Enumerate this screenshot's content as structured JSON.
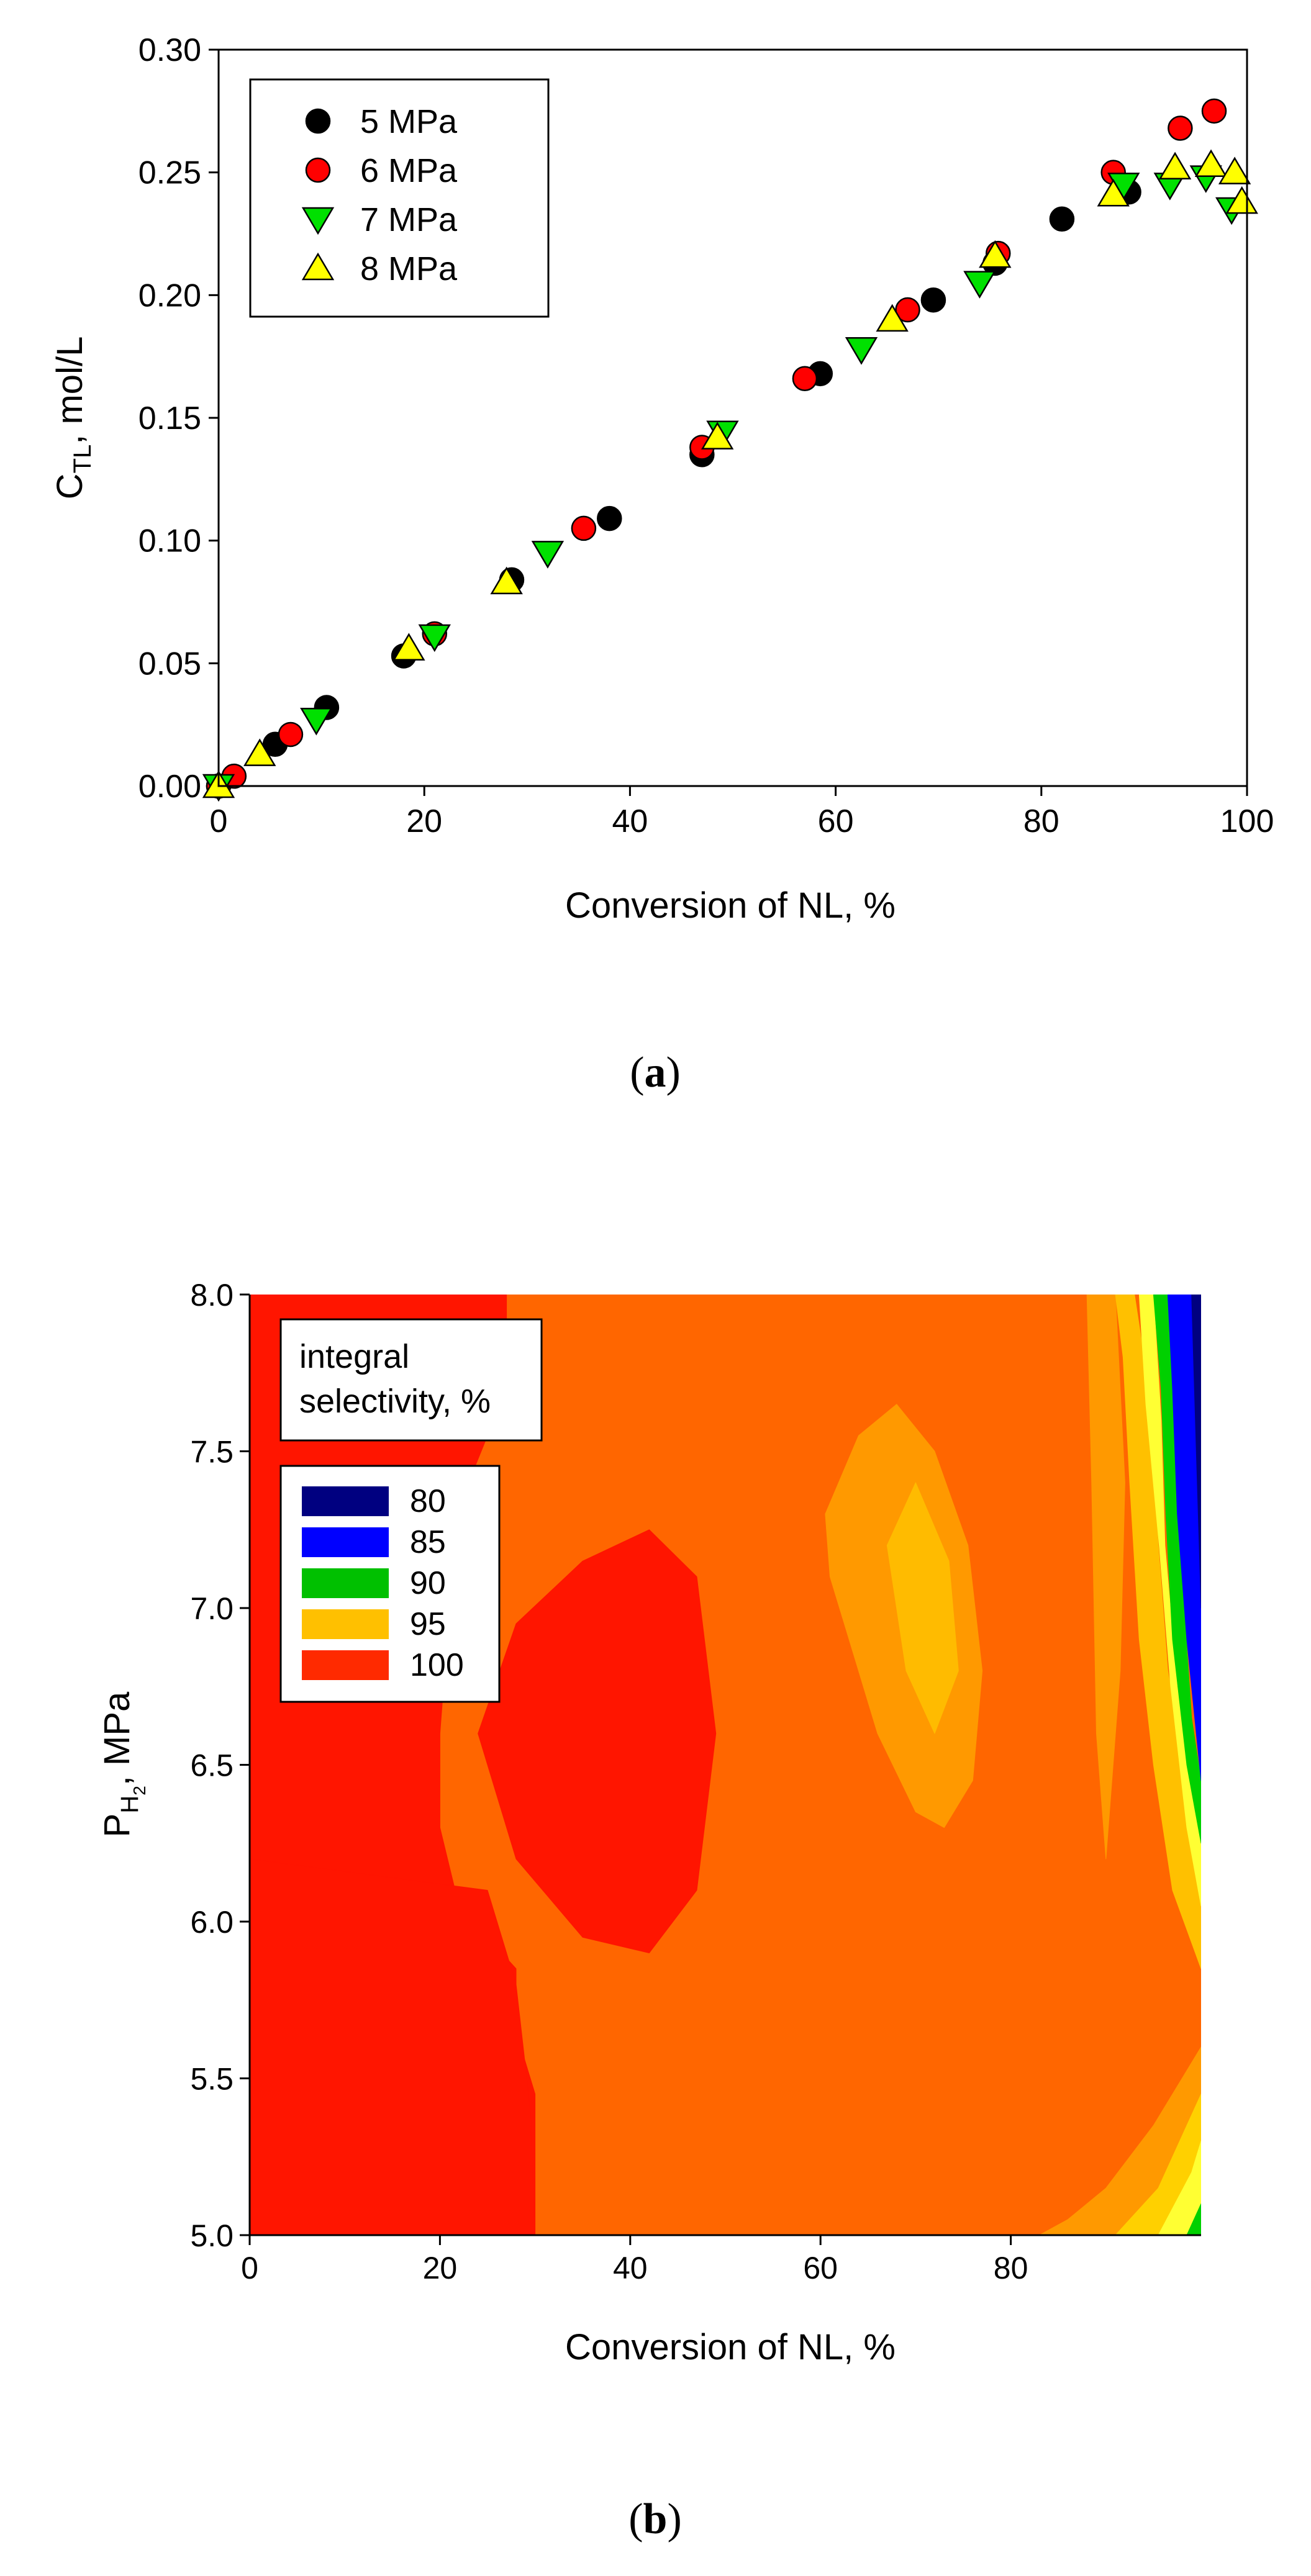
{
  "chart_data": [
    {
      "type": "scatter",
      "panel_label": "a",
      "xlabel": "Conversion of NL, %",
      "ylabel_main": "C",
      "ylabel_sub": "TL",
      "ylabel_rest": ", mol/L",
      "xlim": [
        0,
        100
      ],
      "ylim": [
        0,
        0.3
      ],
      "xticks": [
        "0",
        "20",
        "40",
        "60",
        "80",
        "100"
      ],
      "yticks": [
        "0.00",
        "0.05",
        "0.10",
        "0.15",
        "0.20",
        "0.25",
        "0.30"
      ],
      "legend_position": "top-left",
      "series": [
        {
          "name": "5 MPa",
          "marker": "circle",
          "color": "#000000",
          "x": [
            0,
            5.5,
            10.5,
            18,
            28.5,
            38,
            47,
            58.5,
            69.5,
            75.5,
            82,
            88.5
          ],
          "y": [
            0,
            0.017,
            0.032,
            0.053,
            0.084,
            0.109,
            0.135,
            0.168,
            0.198,
            0.213,
            0.231,
            0.242
          ]
        },
        {
          "name": "6 MPa",
          "marker": "circle",
          "color": "#ff0000",
          "x": [
            0,
            1.5,
            7,
            21,
            35.5,
            47,
            57,
            67,
            75.8,
            87,
            93.5,
            96.8
          ],
          "y": [
            0,
            0.004,
            0.021,
            0.062,
            0.105,
            0.138,
            0.166,
            0.194,
            0.217,
            0.25,
            0.268,
            0.275
          ]
        },
        {
          "name": "7 MPa",
          "marker": "triangle-down",
          "color": "#00e000",
          "x": [
            0,
            9.5,
            21,
            32,
            49,
            62.5,
            74,
            88,
            92.5,
            96,
            98.5
          ],
          "y": [
            0,
            0.027,
            0.061,
            0.095,
            0.144,
            0.178,
            0.205,
            0.245,
            0.245,
            0.248,
            0.235
          ]
        },
        {
          "name": "8 MPa",
          "marker": "triangle-up",
          "color": "#ffff00",
          "x": [
            0,
            4,
            18.5,
            28,
            48.5,
            65.5,
            75.5,
            87,
            93,
            96.5,
            98.8,
            99.5
          ],
          "y": [
            0,
            0.013,
            0.056,
            0.083,
            0.142,
            0.19,
            0.216,
            0.241,
            0.252,
            0.253,
            0.25,
            0.238
          ]
        }
      ]
    },
    {
      "type": "heatmap",
      "panel_label": "b",
      "xlabel": "Conversion of NL, %",
      "ylabel_main": "P",
      "ylabel_sub": "H",
      "ylabel_subsub": "2",
      "ylabel_rest": ", MPa",
      "xlim": [
        0,
        100
      ],
      "ylim": [
        5.0,
        8.0
      ],
      "xticks": [
        "0",
        "20",
        "40",
        "60",
        "80"
      ],
      "yticks": [
        "5.0",
        "5.5",
        "6.0",
        "6.5",
        "7.0",
        "7.5",
        "8.0"
      ],
      "zlabel": "integral selectivity, %",
      "zlabel_line1": "integral",
      "zlabel_line2": "selectivity, %",
      "legend_position": "top-left",
      "levels": [
        {
          "label": "80",
          "color": "#000080"
        },
        {
          "label": "85",
          "color": "#0000ff"
        },
        {
          "label": "90",
          "color": "#00c000"
        },
        {
          "label": "95",
          "color": "#ffc000"
        },
        {
          "label": "100",
          "color": "#ff2a00"
        }
      ],
      "background_color": "#ff6600",
      "regions": [
        {
          "level": 100,
          "color": "#ff1500",
          "x": [
            0,
            27,
            27,
            23,
            21,
            20,
            20,
            22,
            25,
            28,
            28,
            30,
            30,
            28,
            25,
            21,
            18,
            0
          ],
          "y": [
            8.0,
            8.0,
            7.7,
            7.4,
            7.0,
            6.6,
            6.3,
            6.05,
            5.95,
            5.85,
            5.65,
            5.45,
            5.0,
            5.0,
            5.0,
            5.0,
            5.0,
            5.0
          ]
        },
        {
          "level": 100,
          "color": "#ff1500",
          "x": [
            0,
            30,
            29.5,
            28,
            25,
            0
          ],
          "y": [
            5.0,
            5.0,
            5.4,
            5.8,
            6.1,
            6.2
          ]
        },
        {
          "level": 100,
          "color": "#ff1500",
          "x": [
            24,
            28,
            35,
            42,
            47,
            49,
            47,
            42,
            35,
            28
          ],
          "y": [
            6.6,
            6.95,
            7.15,
            7.25,
            7.1,
            6.6,
            6.1,
            5.9,
            5.95,
            6.2
          ]
        },
        {
          "level": 95,
          "color": "#ff9900",
          "x": [
            60.5,
            64,
            68,
            72,
            75.5,
            77,
            76,
            73,
            70,
            66,
            63,
            61
          ],
          "y": [
            7.3,
            7.55,
            7.65,
            7.5,
            7.2,
            6.8,
            6.45,
            6.3,
            6.35,
            6.6,
            6.9,
            7.1
          ]
        },
        {
          "level": 95,
          "color": "#ffbb00",
          "x": [
            67,
            70,
            73.5,
            74.5,
            72,
            69
          ],
          "y": [
            7.2,
            7.4,
            7.15,
            6.8,
            6.6,
            6.8
          ]
        },
        {
          "level": 95,
          "color": "#ff9900",
          "x": [
            83,
            86,
            90,
            95,
            100,
            100,
            96,
            92,
            88,
            85
          ],
          "y": [
            5.0,
            5.05,
            5.15,
            5.35,
            5.6,
            5.0,
            5.0,
            5.0,
            5.0,
            5.0
          ]
        },
        {
          "level": 95,
          "color": "#ff9900",
          "x": [
            88,
            91,
            92,
            91.5,
            90,
            89,
            88.5
          ],
          "y": [
            8.0,
            8.0,
            7.4,
            6.8,
            6.2,
            6.6,
            7.4
          ]
        },
        {
          "level": 95,
          "color": "#ffc000",
          "x": [
            91,
            93,
            94.5,
            95.5,
            96.5,
            100,
            100,
            97,
            95,
            93.5,
            92.5,
            91.8
          ],
          "y": [
            8.0,
            8.0,
            7.7,
            7.2,
            6.8,
            6.2,
            5.85,
            6.1,
            6.5,
            6.9,
            7.4,
            7.8
          ]
        },
        {
          "level": 95,
          "color": "#ffd000",
          "x": [
            91,
            95.5,
            100,
            100,
            97,
            93.5
          ],
          "y": [
            5.0,
            5.15,
            5.45,
            5.0,
            5.0,
            5.0
          ]
        },
        {
          "level": 90,
          "color": "#ffff33",
          "x": [
            93.5,
            95,
            95.8,
            96.2,
            97.5,
            100,
            100,
            98.5,
            96.8,
            95.6,
            94.2
          ],
          "y": [
            8.0,
            8.0,
            7.6,
            7.2,
            6.75,
            6.3,
            6.05,
            6.3,
            6.75,
            7.2,
            7.65
          ]
        },
        {
          "level": 90,
          "color": "#00d000",
          "x": [
            95,
            96.8,
            97.3,
            98,
            99,
            100,
            100,
            98.5,
            97,
            96.3,
            95.8
          ],
          "y": [
            8.0,
            8.0,
            7.6,
            7.1,
            6.65,
            6.45,
            6.25,
            6.5,
            6.9,
            7.3,
            7.7
          ]
        },
        {
          "level": 90,
          "color": "#ffff33",
          "x": [
            95.5,
            99,
            100,
            100,
            97.5
          ],
          "y": [
            5.0,
            5.2,
            5.3,
            5.0,
            5.0
          ]
        },
        {
          "level": 90,
          "color": "#00d000",
          "x": [
            98.5,
            100,
            100
          ],
          "y": [
            5.0,
            5.1,
            5.0
          ]
        },
        {
          "level": 85,
          "color": "#0000ff",
          "x": [
            96.5,
            100,
            100,
            99.5,
            98.5,
            97.5,
            97
          ],
          "y": [
            8.0,
            8.0,
            6.45,
            6.6,
            6.9,
            7.3,
            7.7
          ]
        },
        {
          "level": 80,
          "color": "#000080",
          "x": [
            99,
            100,
            100,
            99.5
          ],
          "y": [
            8.0,
            8.0,
            7.0,
            7.5
          ]
        }
      ]
    }
  ]
}
